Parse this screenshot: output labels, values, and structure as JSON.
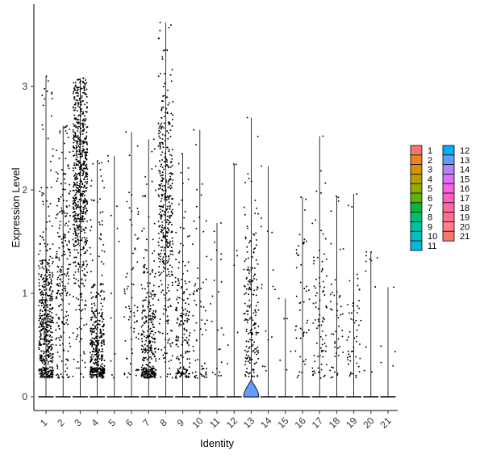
{
  "chart_data": {
    "type": "violin",
    "xlabel": "Identity",
    "ylabel": "Expression Level",
    "ylim": [
      -0.15,
      3.75
    ],
    "yticks": [
      0,
      1,
      2,
      3
    ],
    "grid": false,
    "legend_placement": "right",
    "categories": [
      "1",
      "2",
      "3",
      "4",
      "5",
      "6",
      "7",
      "8",
      "9",
      "10",
      "11",
      "12",
      "13",
      "14",
      "15",
      "16",
      "17",
      "18",
      "19",
      "20",
      "21"
    ],
    "colors": [
      "#F8766D",
      "#E8851E",
      "#D39200",
      "#B8A000",
      "#93AA00",
      "#5EB300",
      "#00BA38",
      "#00BF74",
      "#00C19F",
      "#00BFC4",
      "#00B9E3",
      "#00ADFA",
      "#619CFF",
      "#AE87FF",
      "#DB72FB",
      "#F564E3",
      "#FF61C3",
      "#FF699C",
      "#FF6C91",
      "#FF7F8A",
      "#F8766D"
    ],
    "max_values": [
      3.1,
      2.62,
      3.08,
      2.28,
      2.33,
      2.56,
      2.49,
      3.62,
      2.35,
      2.58,
      1.68,
      2.25,
      2.7,
      2.23,
      0.95,
      1.93,
      2.52,
      1.94,
      1.96,
      1.4,
      1.06
    ],
    "point_counts": [
      520,
      230,
      680,
      400,
      12,
      70,
      330,
      420,
      190,
      70,
      25,
      8,
      190,
      16,
      6,
      50,
      90,
      50,
      55,
      12,
      5
    ],
    "clusters": [
      {
        "center": 0.7,
        "spread": 0.45
      },
      {
        "center": 1.3,
        "spread": 0.6
      },
      {
        "center": 2.1,
        "spread": 0.55
      },
      {
        "center": 0.45,
        "spread": 0.35
      },
      {
        "center": 0.8,
        "spread": 0.7
      },
      {
        "center": 0.8,
        "spread": 0.6
      },
      {
        "center": 0.45,
        "spread": 0.4
      },
      {
        "center": 1.8,
        "spread": 0.7
      },
      {
        "center": 0.6,
        "spread": 0.5
      },
      {
        "center": 0.7,
        "spread": 0.6
      },
      {
        "center": 0.6,
        "spread": 0.5
      },
      {
        "center": 1.2,
        "spread": 0.6
      },
      {
        "center": 0.8,
        "spread": 0.45
      },
      {
        "center": 0.8,
        "spread": 0.6
      },
      {
        "center": 0.5,
        "spread": 0.3
      },
      {
        "center": 0.9,
        "spread": 0.5
      },
      {
        "center": 0.8,
        "spread": 0.5
      },
      {
        "center": 0.6,
        "spread": 0.4
      },
      {
        "center": 0.6,
        "spread": 0.35
      },
      {
        "center": 1.0,
        "spread": 0.4
      },
      {
        "center": 0.5,
        "spread": 0.3
      }
    ],
    "violin_cluster_index": 12,
    "violin_peak_value": 0.17
  }
}
